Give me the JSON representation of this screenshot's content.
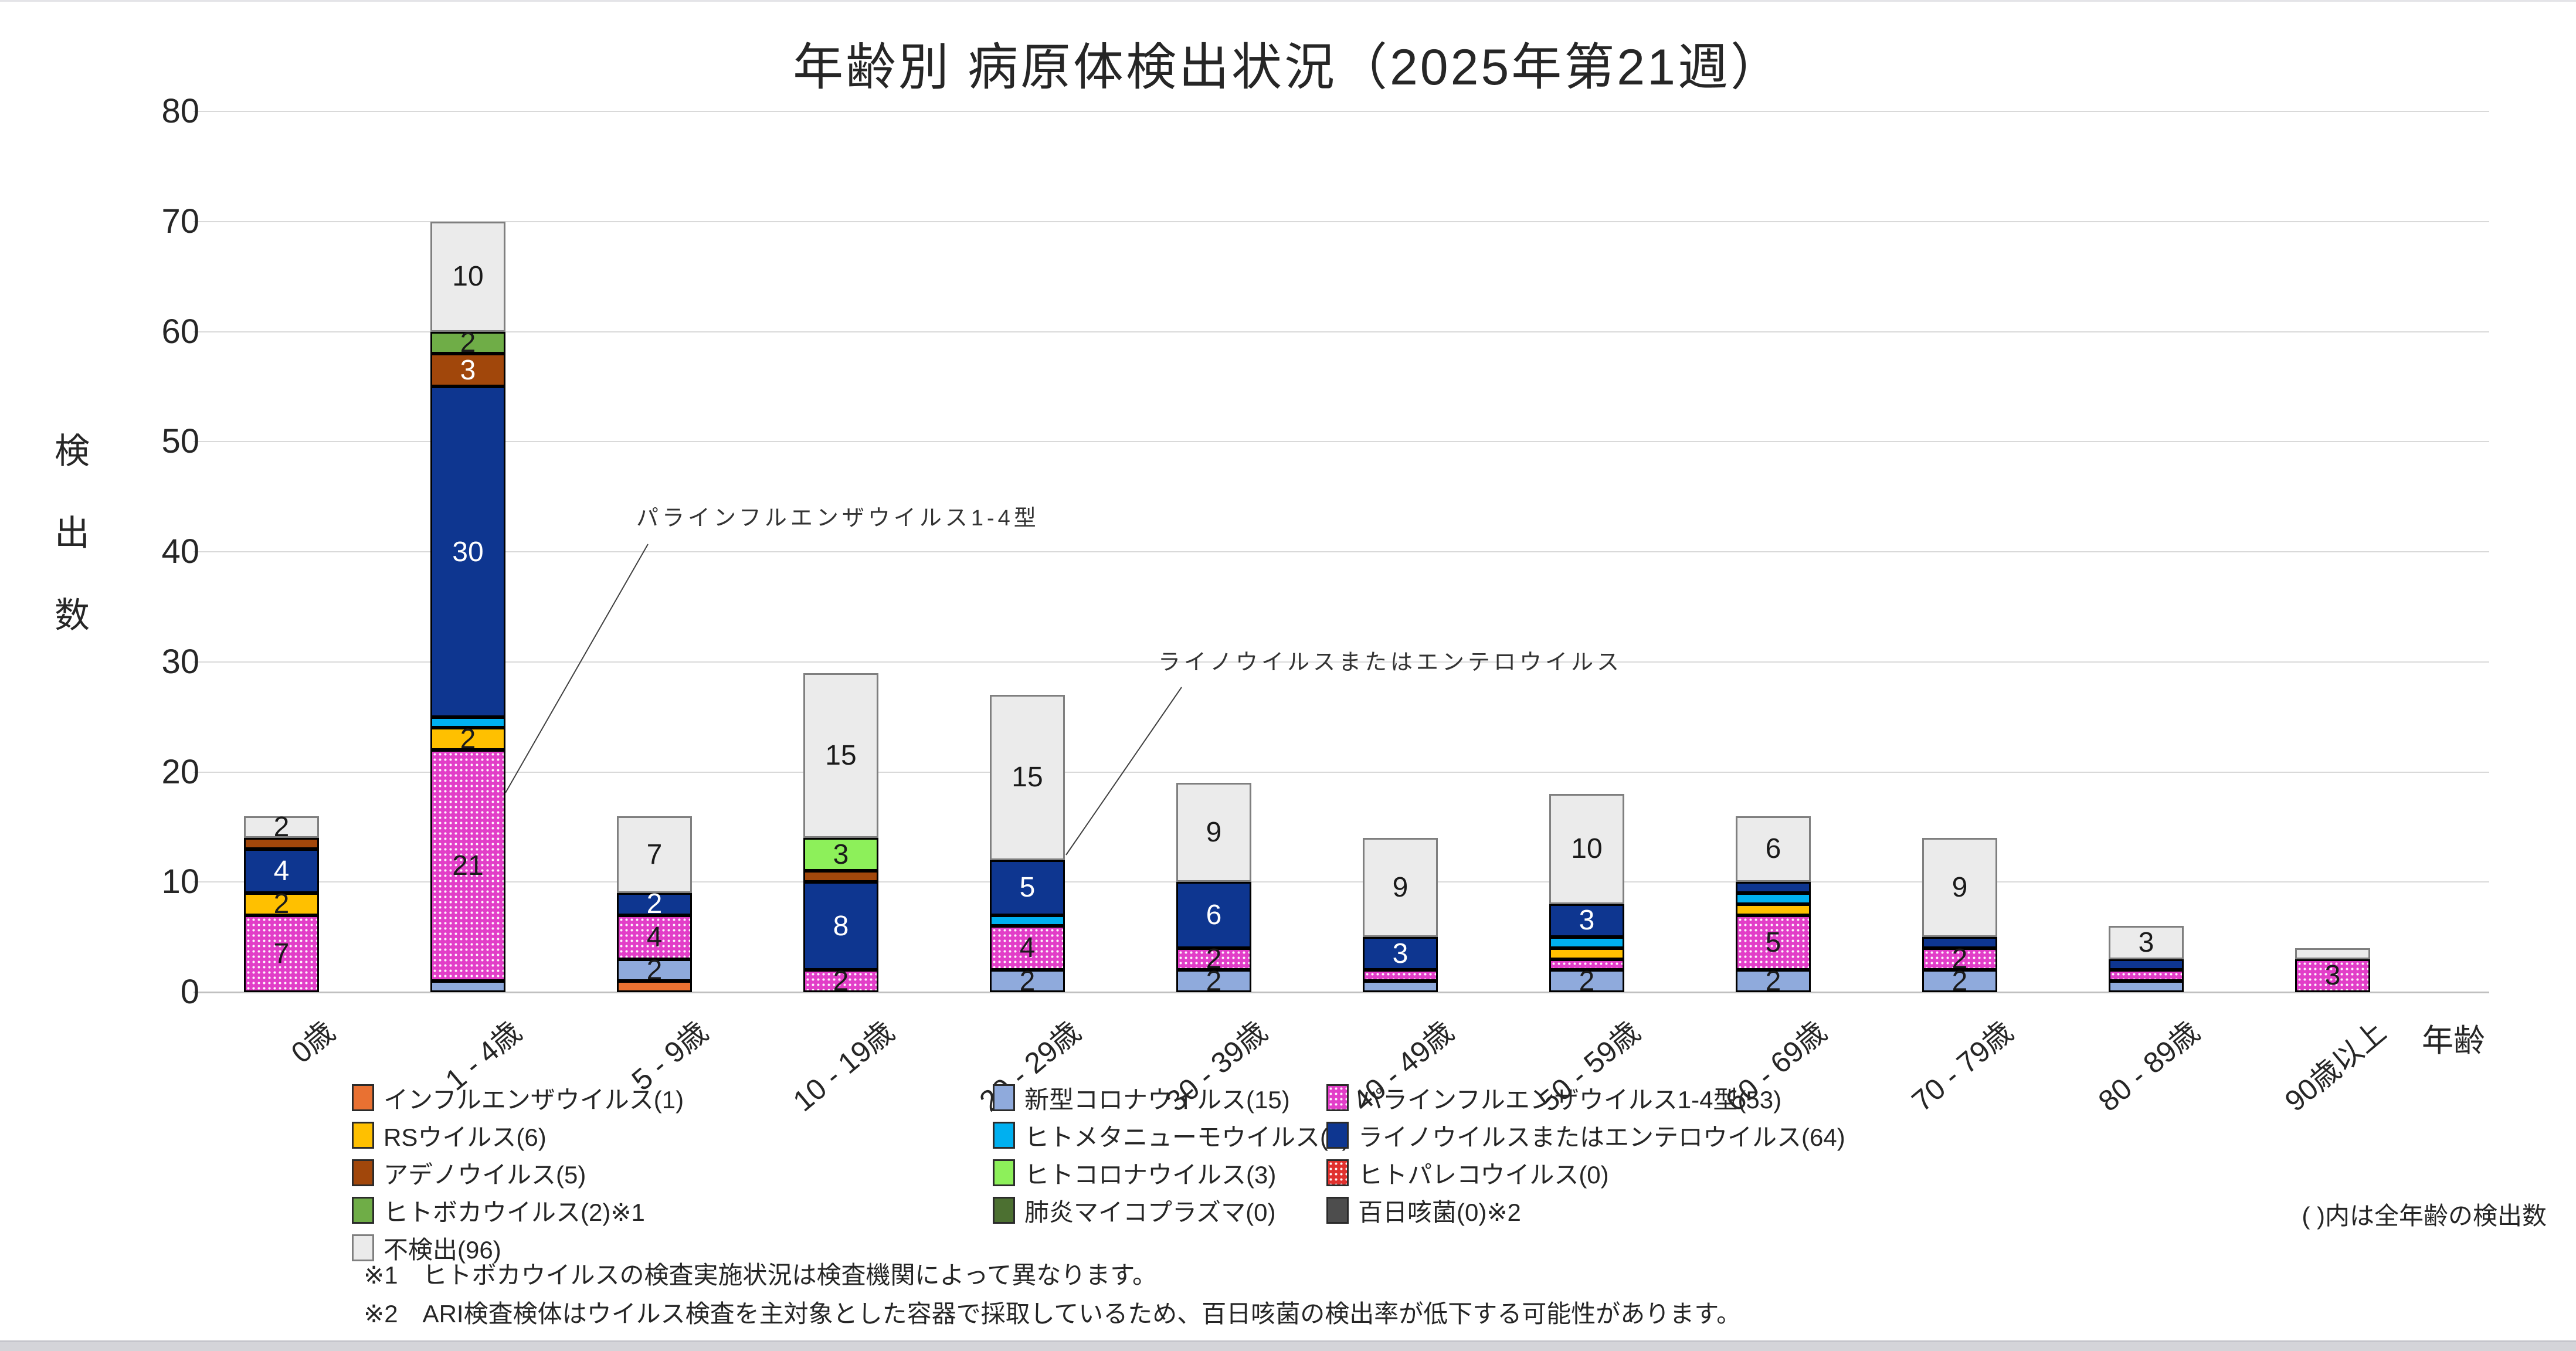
{
  "title": "年齢別 病原体検出状況（2025年第21週）",
  "y_axis": {
    "title": "検出数",
    "ticks": [
      "0",
      "10",
      "20",
      "30",
      "40",
      "50",
      "60",
      "70",
      "80"
    ]
  },
  "x_axis": {
    "title": "年齢"
  },
  "chart_data": {
    "type": "bar",
    "stacked": true,
    "ylim": [
      0,
      80
    ],
    "grid": "horizontal",
    "categories": [
      "0歳",
      "1 - 4歳",
      "5 - 9歳",
      "10 - 19歳",
      "20 - 29歳",
      "30 - 39歳",
      "40 - 49歳",
      "50 - 59歳",
      "60 - 69歳",
      "70 - 79歳",
      "80 - 89歳",
      "90歳以上"
    ],
    "label_rule": "segment values >= 2 are shown as data labels",
    "series": [
      {
        "name": "インフルエンザウイルス",
        "total": 1,
        "color": "#E97132",
        "values": [
          0,
          0,
          1,
          0,
          0,
          0,
          0,
          0,
          0,
          0,
          0,
          0
        ]
      },
      {
        "name": "新型コロナウイルス",
        "total": 15,
        "color": "#8FAADC",
        "values": [
          0,
          1,
          2,
          0,
          2,
          2,
          1,
          2,
          2,
          2,
          1,
          0
        ]
      },
      {
        "name": "パラインフルエンザウイルス1-4型",
        "total": 53,
        "color": "#E23EC8",
        "pattern": "dots",
        "values": [
          7,
          21,
          4,
          2,
          4,
          2,
          1,
          1,
          5,
          2,
          1,
          3
        ]
      },
      {
        "name": "RSウイルス",
        "total": 6,
        "color": "#FFC000",
        "values": [
          2,
          2,
          0,
          0,
          0,
          0,
          0,
          1,
          1,
          0,
          0,
          0
        ]
      },
      {
        "name": "ヒトメタニューモウイルス",
        "total": 4,
        "color": "#00B0F0",
        "values": [
          0,
          1,
          0,
          0,
          1,
          0,
          0,
          1,
          1,
          0,
          0,
          0
        ]
      },
      {
        "name": "ライノウイルスまたはエンテロウイルス",
        "total": 64,
        "color": "#0E3690",
        "label_color": "#FFFFFF",
        "values": [
          4,
          30,
          2,
          8,
          5,
          6,
          3,
          3,
          1,
          1,
          1,
          0
        ]
      },
      {
        "name": "アデノウイルス",
        "total": 5,
        "color": "#A1470B",
        "label_color": "#FFFFFF",
        "values": [
          1,
          3,
          0,
          1,
          0,
          0,
          0,
          0,
          0,
          0,
          0,
          0
        ]
      },
      {
        "name": "ヒトコロナウイルス",
        "total": 3,
        "color": "#8DF05A",
        "values": [
          0,
          0,
          0,
          3,
          0,
          0,
          0,
          0,
          0,
          0,
          0,
          0
        ]
      },
      {
        "name": "ヒトパレコウイルス",
        "total": 0,
        "color": "#E0312E",
        "pattern": "dots",
        "values": [
          0,
          0,
          0,
          0,
          0,
          0,
          0,
          0,
          0,
          0,
          0,
          0
        ]
      },
      {
        "name": "ヒトボカウイルス",
        "total": 2,
        "color": "#6FAD47",
        "values": [
          0,
          2,
          0,
          0,
          0,
          0,
          0,
          0,
          0,
          0,
          0,
          0
        ]
      },
      {
        "name": "肺炎マイコプラズマ",
        "total": 0,
        "color": "#4C7031",
        "values": [
          0,
          0,
          0,
          0,
          0,
          0,
          0,
          0,
          0,
          0,
          0,
          0
        ]
      },
      {
        "name": "百日咳菌",
        "total": 0,
        "color": "#4D4D4D",
        "values": [
          0,
          0,
          0,
          0,
          0,
          0,
          0,
          0,
          0,
          0,
          0,
          0
        ]
      },
      {
        "name": "不検出",
        "total": 96,
        "color": "#EBEBEB",
        "border": "#7F7F7F",
        "values": [
          2,
          10,
          7,
          15,
          15,
          9,
          9,
          10,
          6,
          9,
          3,
          1
        ]
      }
    ]
  },
  "legend": {
    "items": [
      {
        "label": "インフルエンザウイルス(1)",
        "color": "#E97132",
        "col": 0,
        "row": 0
      },
      {
        "label": "新型コロナウイルス(15)",
        "color": "#8FAADC",
        "col": 1,
        "row": 0
      },
      {
        "label": "パラインフルエンザウイルス1-4型(53)",
        "color": "#E23EC8",
        "pattern": "dots",
        "col": 2,
        "row": 0
      },
      {
        "label": "RSウイルス(6)",
        "color": "#FFC000",
        "col": 0,
        "row": 1
      },
      {
        "label": "ヒトメタニューモウイルス(4)",
        "color": "#00B0F0",
        "col": 1,
        "row": 1
      },
      {
        "label": "ライノウイルスまたはエンテロウイルス(64)",
        "color": "#0E3690",
        "col": 2,
        "row": 1
      },
      {
        "label": "アデノウイルス(5)",
        "color": "#A1470B",
        "col": 0,
        "row": 2
      },
      {
        "label": "ヒトコロナウイルス(3)",
        "color": "#8DF05A",
        "col": 1,
        "row": 2
      },
      {
        "label": "ヒトパレコウイルス(0)",
        "color": "#E0312E",
        "pattern": "dots",
        "col": 2,
        "row": 2
      },
      {
        "label": "ヒトボカウイルス(2)※1",
        "color": "#6FAD47",
        "col": 0,
        "row": 3
      },
      {
        "label": "肺炎マイコプラズマ(0)",
        "color": "#4C7031",
        "col": 1,
        "row": 3
      },
      {
        "label": "百日咳菌(0)※2",
        "color": "#4D4D4D",
        "col": 2,
        "row": 3
      },
      {
        "label": "不検出(96)",
        "color": "#EBEBEB",
        "border": "#7F7F7F",
        "col": 0,
        "row": 4
      }
    ]
  },
  "annotations": [
    {
      "text": "パラインフルエンザウイルス1-4型"
    },
    {
      "text": "ライノウイルスまたはエンテロウイルス"
    }
  ],
  "notes": {
    "paren": "( )内は全年齢の検出数",
    "fn1": "※1　ヒトボカウイルスの検査実施状況は検査機関によって異なります。",
    "fn2": "※2　ARI検査検体はウイルス検査を主対象とした容器で採取しているため、百日咳菌の検出率が低下する可能性があります。"
  }
}
